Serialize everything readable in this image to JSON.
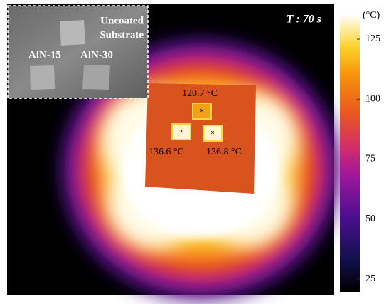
{
  "time_label": "T : 70 s",
  "inset": {
    "labels": [
      "Uncoated",
      "Substrate",
      "AlN-15",
      "AlN-30"
    ]
  },
  "spots": [
    "120.7 °C",
    "136.6 °C",
    "136.8 °C"
  ],
  "colorbar": {
    "unit": "(°C)",
    "range": [
      19.6,
      135.4
    ],
    "ticks": [
      25,
      50,
      75,
      100,
      125
    ]
  }
}
